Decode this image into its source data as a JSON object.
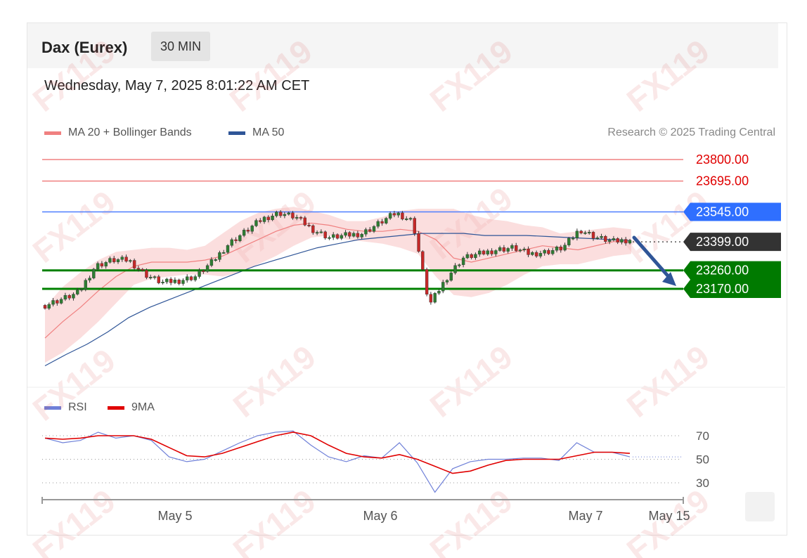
{
  "header": {
    "instrument": "Dax (Eurex)",
    "interval": "30 MIN"
  },
  "timestamp": "Wednesday, May 7, 2025 8:01:22 AM CET",
  "legend": [
    {
      "label": "MA 20 + Bollinger Bands",
      "color": "#f08080"
    },
    {
      "label": "MA 50",
      "color": "#2f5597"
    }
  ],
  "credit": "Research © 2025 Trading Central",
  "rsi_legend": [
    {
      "label": "RSI",
      "color": "#6f80d8"
    },
    {
      "label": "9MA",
      "color": "#e00000"
    }
  ],
  "watermark": "FX119",
  "chart_data": [
    {
      "type": "candlestick",
      "title": "Dax (Eurex)",
      "interval": "30 MIN",
      "ylim": [
        22800,
        23900
      ],
      "x_tick_labels": [
        "May 5",
        "May 6",
        "May 7",
        "May 15"
      ],
      "close_path": [
        23090,
        23120,
        23150,
        23280,
        23310,
        23310,
        23240,
        23200,
        23210,
        23230,
        23300,
        23390,
        23450,
        23510,
        23540,
        23520,
        23460,
        23420,
        23430,
        23440,
        23490,
        23540,
        23500,
        23090,
        23220,
        23320,
        23340,
        23360,
        23370,
        23340,
        23350,
        23370,
        23460,
        23420,
        23400,
        23410
      ],
      "ma20_path": [
        22930,
        23010,
        23080,
        23160,
        23230,
        23280,
        23300,
        23300,
        23300,
        23310,
        23330,
        23370,
        23410,
        23450,
        23480,
        23490,
        23480,
        23460,
        23450,
        23450,
        23460,
        23450,
        23410,
        23320,
        23300,
        23320,
        23340,
        23360,
        23380,
        23370,
        23360,
        23380,
        23400,
        23400
      ],
      "bb_upper_path": [
        23080,
        23180,
        23250,
        23310,
        23350,
        23360,
        23370,
        23370,
        23360,
        23380,
        23440,
        23500,
        23540,
        23560,
        23570,
        23550,
        23530,
        23500,
        23500,
        23520,
        23550,
        23560,
        23560,
        23560,
        23530,
        23510,
        23500,
        23480,
        23470,
        23440,
        23450,
        23460,
        23470,
        23460
      ],
      "bb_lower_path": [
        22810,
        22860,
        22930,
        23010,
        23100,
        23190,
        23220,
        23230,
        23240,
        23240,
        23230,
        23250,
        23290,
        23330,
        23380,
        23420,
        23430,
        23410,
        23400,
        23390,
        23370,
        23340,
        23230,
        23140,
        23130,
        23150,
        23190,
        23240,
        23280,
        23290,
        23290,
        23310,
        23330,
        23340
      ],
      "ma50_path": [
        22795,
        22850,
        22900,
        22960,
        23030,
        23080,
        23120,
        23160,
        23200,
        23240,
        23280,
        23310,
        23340,
        23370,
        23390,
        23410,
        23420,
        23430,
        23440,
        23440,
        23440,
        23430,
        23430,
        23430,
        23425,
        23420,
        23415,
        23410,
        23405
      ],
      "levels": [
        {
          "label": "23800.00",
          "value": 23800,
          "color": "#f08080",
          "tag": "text",
          "text_color": "#e00000"
        },
        {
          "label": "23695.00",
          "value": 23695,
          "color": "#f08080",
          "tag": "text",
          "text_color": "#e00000"
        },
        {
          "label": "23545.00",
          "value": 23545,
          "color": "#4f7fff",
          "tag": "#2f6fff",
          "text_color": "#ffffff"
        },
        {
          "label": "23399.00",
          "value": 23399,
          "color": "#333333",
          "tag": "#333333",
          "text_color": "#ffffff"
        },
        {
          "label": "23260.00",
          "value": 23260,
          "color": "#008000",
          "tag": "#007a00",
          "text_color": "#ffffff"
        },
        {
          "label": "23170.00",
          "value": 23170,
          "color": "#008000",
          "tag": "#007a00",
          "text_color": "#ffffff"
        }
      ],
      "forecast": {
        "direction": "down",
        "from": 23420,
        "to": 23170
      }
    },
    {
      "type": "line",
      "title": "RSI",
      "ylim": [
        20,
        80
      ],
      "y_tick_labels": [
        "70",
        "50",
        "30"
      ],
      "reference_levels": [
        70,
        50,
        30
      ],
      "series": [
        {
          "name": "RSI",
          "color": "#6f80d8",
          "values": [
            68,
            64,
            66,
            73,
            68,
            70,
            66,
            52,
            48,
            50,
            57,
            64,
            70,
            73,
            74,
            62,
            52,
            48,
            53,
            51,
            64,
            47,
            22,
            42,
            48,
            50,
            50,
            51,
            51,
            49,
            64,
            56,
            56,
            52
          ]
        },
        {
          "name": "9MA",
          "color": "#e00000",
          "values": [
            68,
            67,
            68,
            70,
            70,
            70,
            67,
            60,
            53,
            52,
            55,
            60,
            65,
            70,
            73,
            70,
            62,
            55,
            52,
            51,
            54,
            50,
            44,
            38,
            40,
            45,
            49,
            50,
            50,
            50,
            53,
            56,
            56,
            55
          ]
        }
      ]
    }
  ]
}
